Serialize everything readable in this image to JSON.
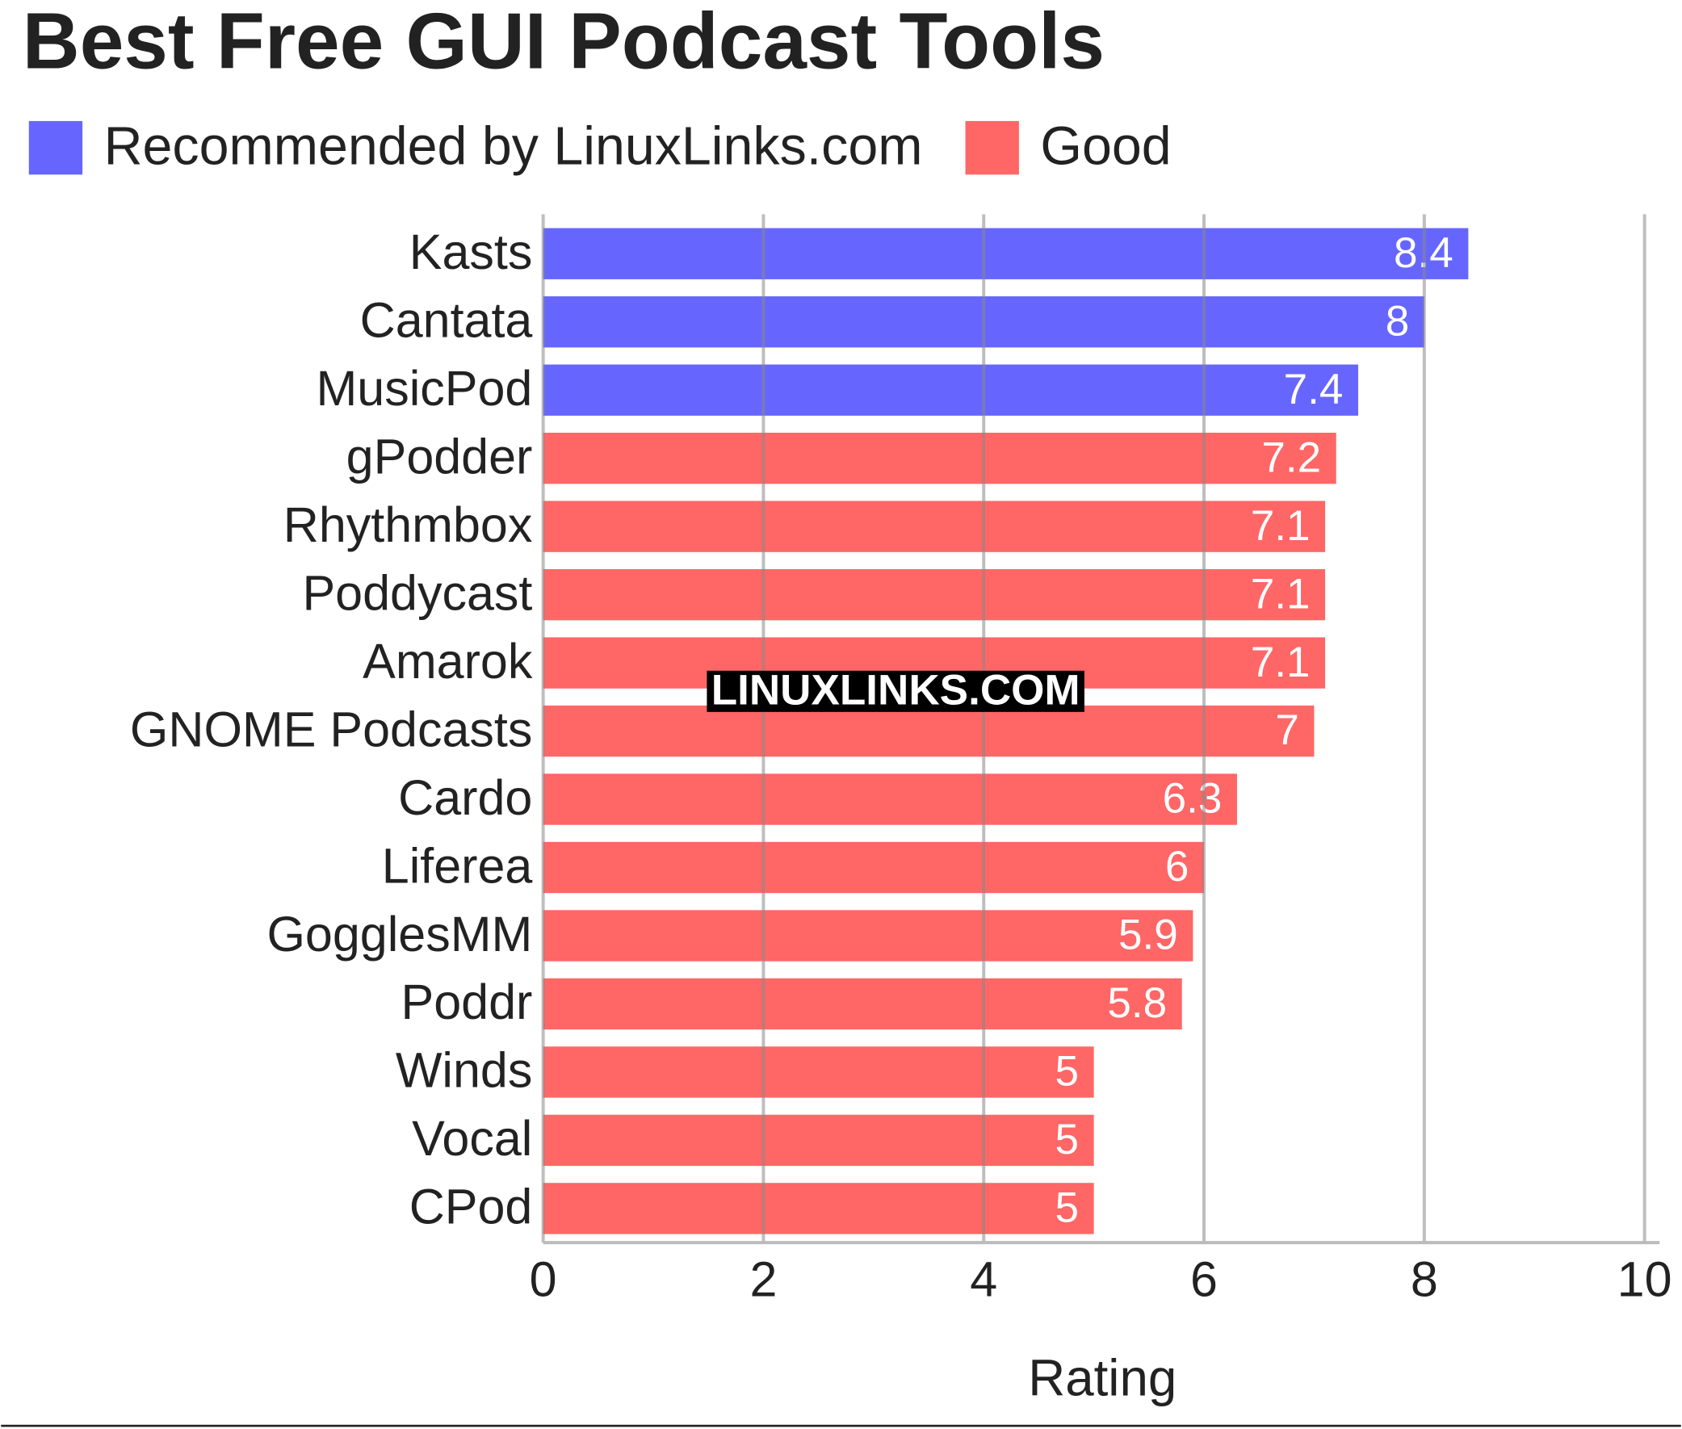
{
  "chart_data": {
    "type": "bar",
    "orientation": "horizontal",
    "title": "Best Free GUI Podcast Tools",
    "x_label": "Rating",
    "watermark": "LINUXLINKS.COM",
    "categories": [
      "Kasts",
      "Cantata",
      "MusicPod",
      "gPodder",
      "Rhythmbox",
      "Poddycast",
      "Amarok",
      "GNOME Podcasts",
      "Cardo",
      "Liferea",
      "GogglesMM",
      "Poddr",
      "Winds",
      "Vocal",
      "CPod"
    ],
    "series": [
      {
        "name": "Recommended by LinuxLinks.com",
        "color": "#6666ff",
        "values": [
          8.4,
          8,
          7.4,
          null,
          null,
          null,
          null,
          null,
          null,
          null,
          null,
          null,
          null,
          null,
          null
        ]
      },
      {
        "name": "Good",
        "color": "#ff6666",
        "values": [
          null,
          null,
          null,
          7.2,
          7.1,
          7.1,
          7.1,
          7,
          6.3,
          6,
          5.9,
          5.8,
          5,
          5,
          5
        ]
      }
    ],
    "xlim": [
      0,
      10
    ],
    "xticks": [
      0,
      2,
      4,
      6,
      8,
      10
    ],
    "grid": true,
    "legend": "top"
  }
}
